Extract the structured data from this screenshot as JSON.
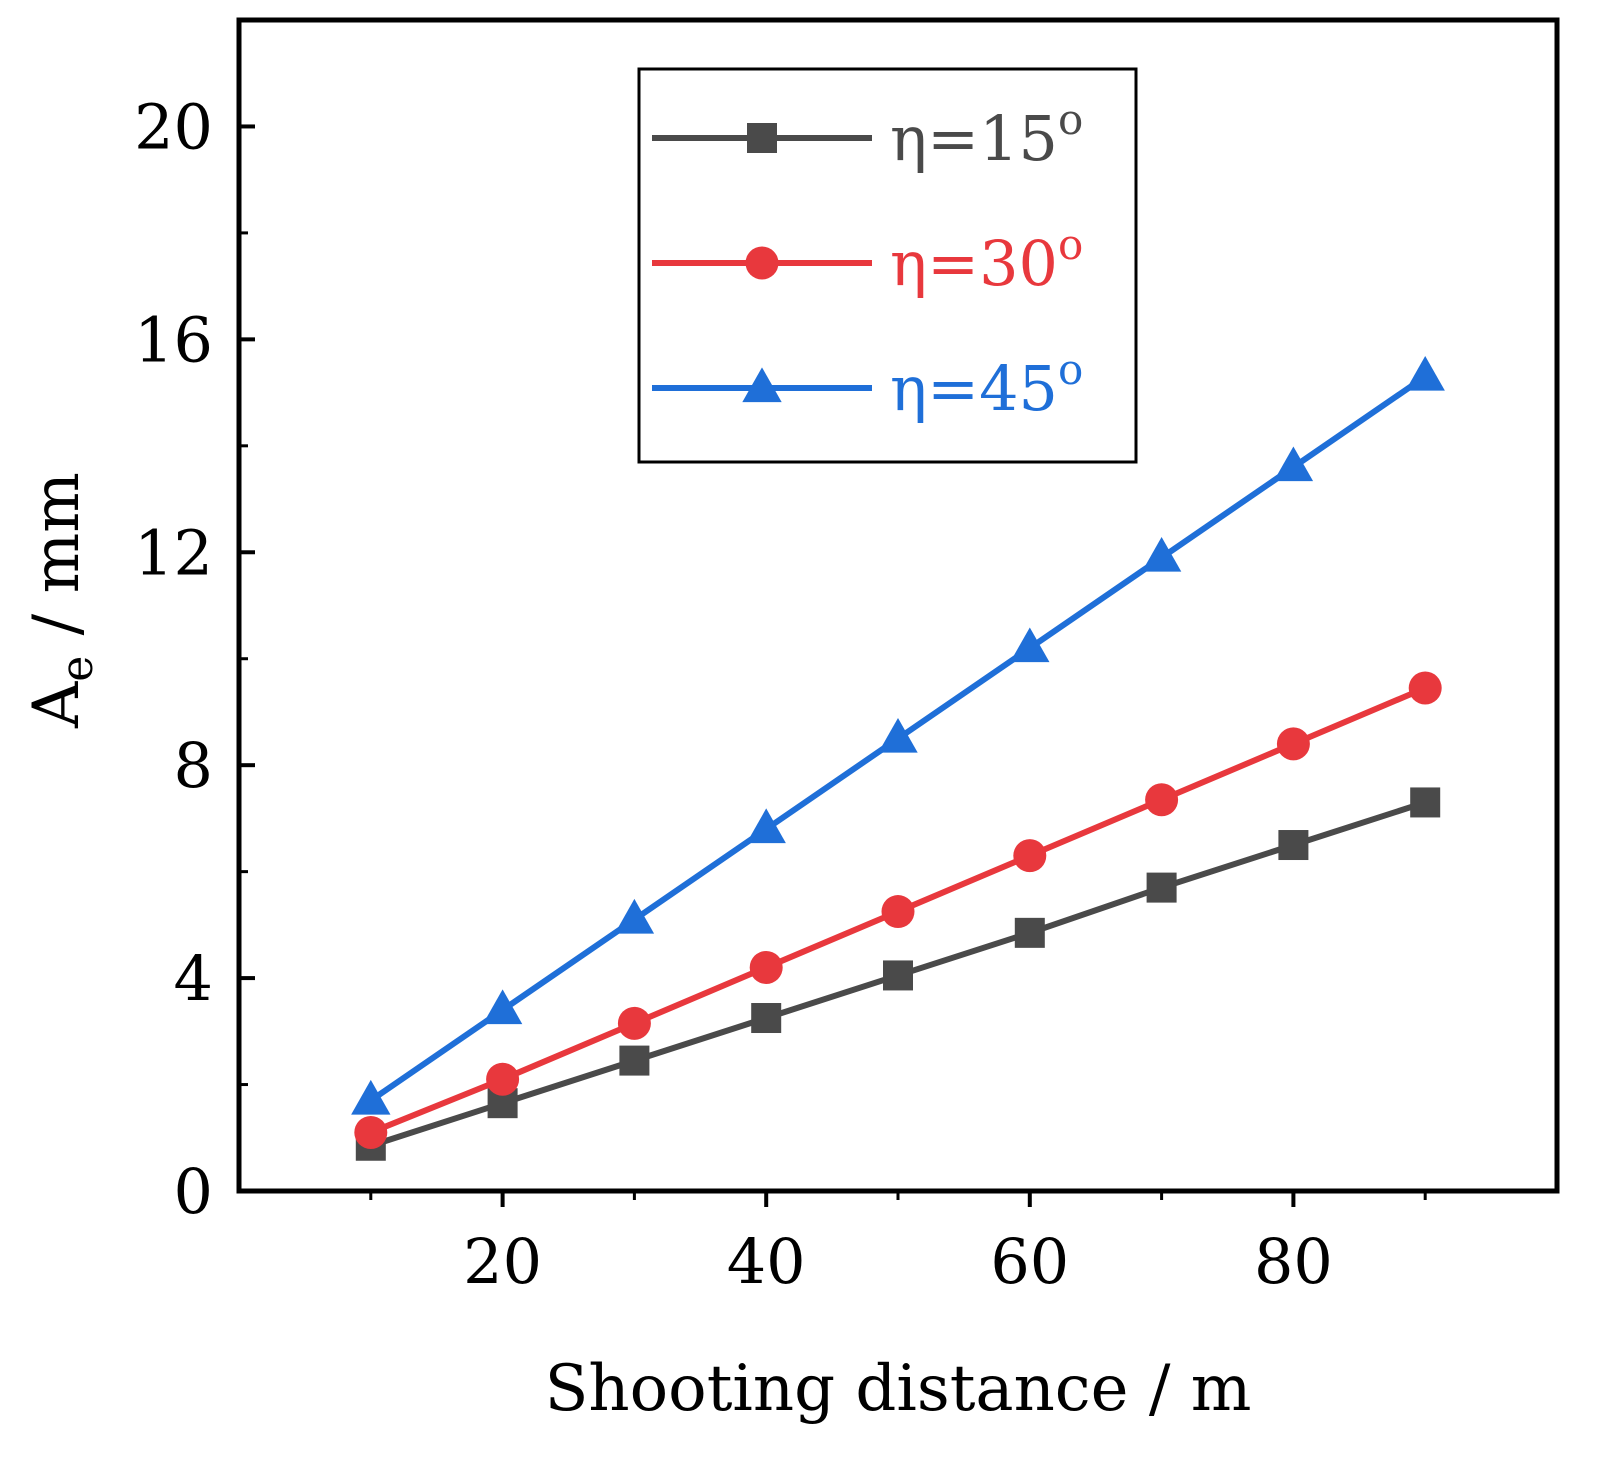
{
  "chart_data": {
    "type": "line",
    "title": "",
    "xlabel": "Shooting distance / m",
    "ylabel": "A",
    "ylabel_subscript": "e",
    "ylabel_unit": " / mm",
    "x": [
      10,
      20,
      30,
      40,
      50,
      60,
      70,
      80,
      90
    ],
    "xlim": [
      0,
      100
    ],
    "ylim": [
      0,
      22
    ],
    "xticks": [
      20,
      40,
      60,
      80
    ],
    "yticks": [
      0,
      4,
      8,
      12,
      16,
      20
    ],
    "xtick_labels": [
      "20",
      "40",
      "60",
      "80"
    ],
    "ytick_labels": [
      "0",
      "4",
      "8",
      "12",
      "16",
      "20"
    ],
    "grid": false,
    "legend_position": "top-center",
    "series": [
      {
        "name": "η=15°",
        "label_main": "η=15",
        "label_sup": "o",
        "color": "#4a4a4a",
        "marker": "square",
        "values": [
          0.85,
          1.65,
          2.45,
          3.25,
          4.05,
          4.85,
          5.7,
          6.5,
          7.3
        ]
      },
      {
        "name": "η=30°",
        "label_main": "η=30",
        "label_sup": "o",
        "color": "#e8383d",
        "marker": "circle",
        "values": [
          1.1,
          2.1,
          3.15,
          4.2,
          5.25,
          6.3,
          7.35,
          8.4,
          9.45
        ]
      },
      {
        "name": "η=45°",
        "label_main": "η=45",
        "label_sup": "o",
        "color": "#1f6fd8",
        "marker": "triangle",
        "values": [
          1.7,
          3.4,
          5.1,
          6.8,
          8.5,
          10.2,
          11.9,
          13.6,
          15.3
        ]
      }
    ]
  }
}
